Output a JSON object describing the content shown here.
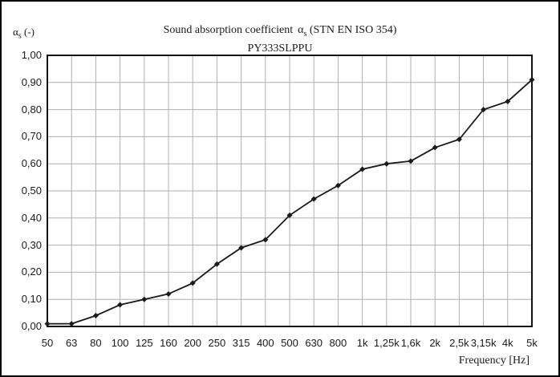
{
  "window": {
    "background": "#fefefe",
    "border_color": "#000000"
  },
  "header": {
    "y_axis_unit": {
      "alpha": "α",
      "sub": "s",
      "rest": " (-)"
    },
    "title": {
      "prefix": "Sound absorption coefficient",
      "alpha": "α",
      "sub": "s",
      "suffix": " (STN EN ISO 354)"
    },
    "subtitle": "PY333SLPPU"
  },
  "chart_data": {
    "type": "line",
    "title": "Sound absorption coefficient αs (STN EN ISO 354)",
    "subtitle": "PY333SLPPU",
    "xlabel": "Frequency [Hz]",
    "ylabel": "αs (-)",
    "categories": [
      "50",
      "63",
      "80",
      "100",
      "125",
      "160",
      "200",
      "250",
      "315",
      "400",
      "500",
      "630",
      "800",
      "1k",
      "1,25k",
      "1,6k",
      "2k",
      "2,5k",
      "3,15k",
      "4k",
      "5k"
    ],
    "values": [
      0.01,
      0.01,
      0.04,
      0.08,
      0.1,
      0.12,
      0.16,
      0.23,
      0.29,
      0.32,
      0.41,
      0.47,
      0.52,
      0.58,
      0.6,
      0.61,
      0.66,
      0.69,
      0.8,
      0.83,
      0.91
    ],
    "series_name": "PY333SLPPU",
    "ylim": [
      0,
      1
    ],
    "y_tick_step": 0.1,
    "y_tick_labels_bottom_up": [
      "0,00",
      "0,10",
      "0,20",
      "0,30",
      "0,40",
      "0,50",
      "0,60",
      "0,70",
      "0,80",
      "0,90",
      "1,00"
    ],
    "grid": true,
    "legend": "none",
    "marker": "diamond",
    "line_color": "#1a1a1a",
    "grid_color": "#b0b0b0",
    "frame_color": "#111111"
  }
}
